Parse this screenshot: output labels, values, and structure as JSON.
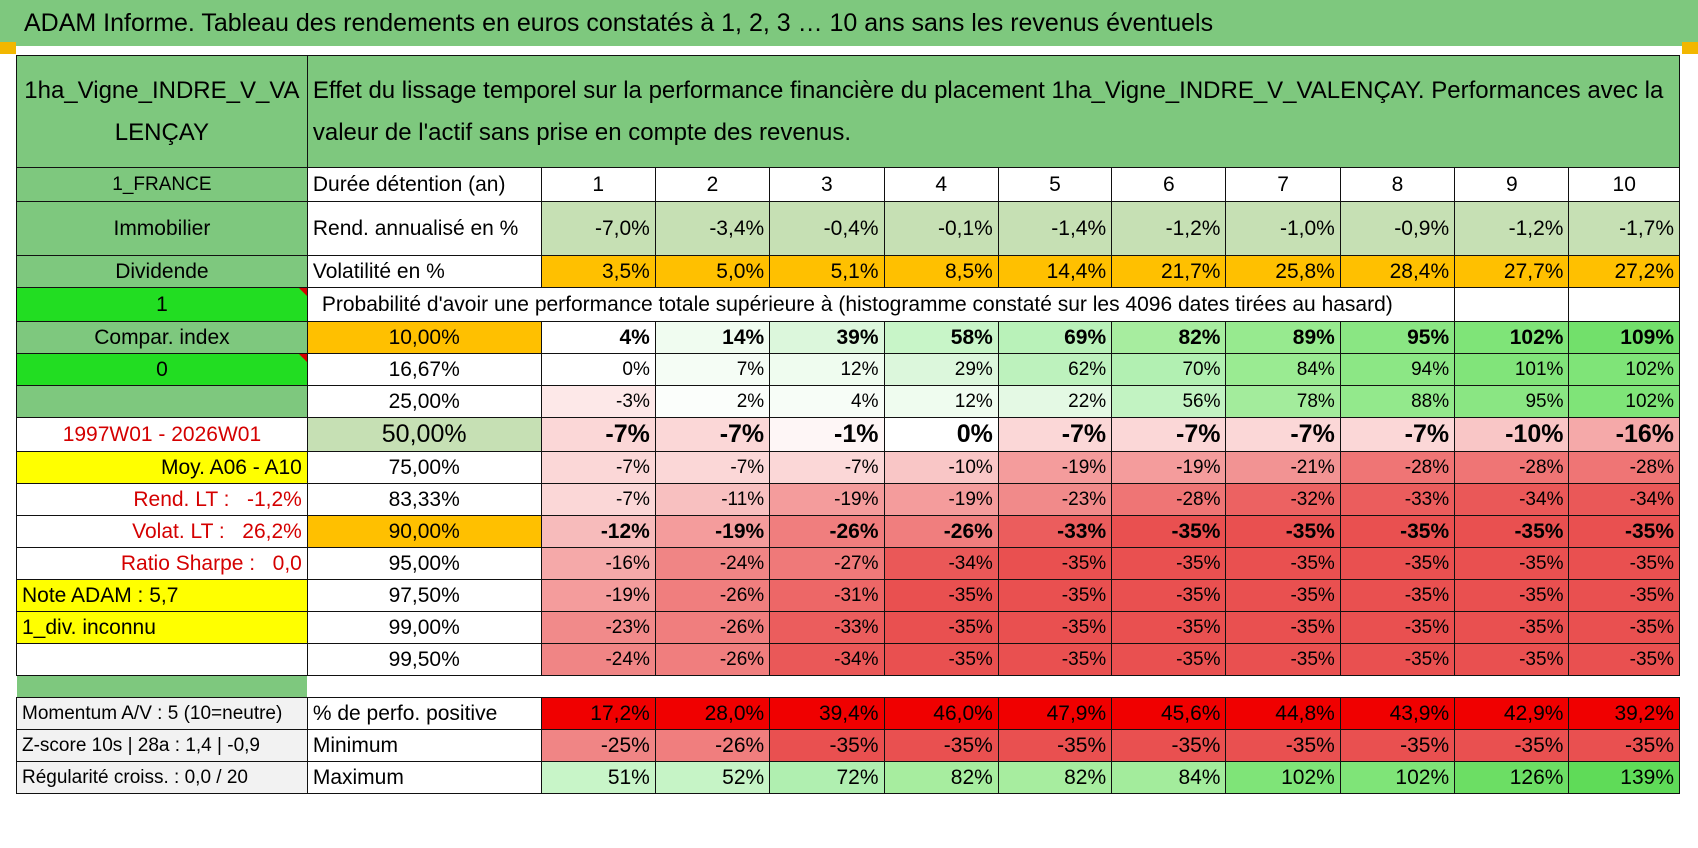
{
  "title": "ADAM Informe. Tableau des rendements en euros constatés à 1, 2, 3 … 10 ans sans les revenus éventuels",
  "asset_name": "1ha_Vigne_INDRE_V_VALENÇAY",
  "description": "Effet du lissage temporel sur la performance financière du placement 1ha_Vigne_INDRE_V_VALENÇAY. Performances avec la valeur de l'actif sans prise en compte des revenus.",
  "left": {
    "country": "1_FRANCE",
    "category": "Immobilier",
    "income_type": "Dividende",
    "flag1": "1",
    "compar_label": "Compar. index",
    "flag2": "0",
    "period": "1997W01 - 2026W01",
    "avg_label": "Moy. A06 - A10",
    "rend_lt_label": "Rend. LT :",
    "rend_lt_value": "-1,2%",
    "volat_lt_label": "Volat. LT :",
    "volat_lt_value": "26,2%",
    "sharpe_label": "Ratio Sharpe :",
    "sharpe_value": "0,0",
    "note": "Note ADAM : 5,7",
    "div": "1_div. inconnu",
    "momentum": "Momentum A/V : 5 (10=neutre)",
    "zscore": "Z-score 10s | 28a : 1,4 | -0,9",
    "regularite": "Régularité croiss. : 0,0 / 20"
  },
  "header": {
    "duration_label": "Durée détention (an)",
    "years": [
      "1",
      "2",
      "3",
      "4",
      "5",
      "6",
      "7",
      "8",
      "9",
      "10"
    ]
  },
  "rend": {
    "label": "Rend. annualisé en %",
    "values": [
      "-7,0%",
      "-3,4%",
      "-0,4%",
      "-0,1%",
      "-1,4%",
      "-1,2%",
      "-1,0%",
      "-0,9%",
      "-1,2%",
      "-1,7%"
    ]
  },
  "vol": {
    "label": "Volatilité en %",
    "values": [
      "3,5%",
      "5,0%",
      "5,1%",
      "8,5%",
      "14,4%",
      "21,7%",
      "25,8%",
      "28,4%",
      "27,7%",
      "27,2%"
    ]
  },
  "prob_title": "Probabilité d'avoir une performance totale supérieure à (histogramme constaté sur les 4096 dates tirées au hasard)",
  "quantiles": [
    {
      "label": "10,00%",
      "values": [
        "4%",
        "14%",
        "39%",
        "58%",
        "69%",
        "82%",
        "89%",
        "95%",
        "102%",
        "109%"
      ],
      "colors": [
        "#ffffff",
        "#f0fcf0",
        "#dcf7dc",
        "#c8f5c8",
        "#b9f2b9",
        "#a7ed9f",
        "#97ea8f",
        "#8ae683",
        "#7fe478",
        "#72e06b"
      ]
    },
    {
      "label": "16,67%",
      "values": [
        "0%",
        "7%",
        "12%",
        "29%",
        "62%",
        "70%",
        "84%",
        "94%",
        "101%",
        "102%"
      ],
      "colors": [
        "#ffffff",
        "#f5fdf5",
        "#effcef",
        "#dcf7dc",
        "#bdf2bd",
        "#b2f0b2",
        "#9aeb92",
        "#8ce785",
        "#81e47a",
        "#7fe478"
      ]
    },
    {
      "label": "25,00%",
      "values": [
        "-3%",
        "2%",
        "4%",
        "12%",
        "22%",
        "56%",
        "78%",
        "88%",
        "95%",
        "102%"
      ],
      "colors": [
        "#fde8e8",
        "#fbfefb",
        "#f7fdf7",
        "#effcef",
        "#e4f9e4",
        "#c2f3c2",
        "#a3ec9c",
        "#93e98c",
        "#8ae683",
        "#7fe478"
      ]
    },
    {
      "label": "50,00%",
      "values": [
        "-7%",
        "-7%",
        "-1%",
        "0%",
        "-7%",
        "-7%",
        "-7%",
        "-7%",
        "-10%",
        "-16%"
      ],
      "colors": [
        "#fbd7d7",
        "#fbd7d7",
        "#fef6f6",
        "#ffffff",
        "#fbd7d7",
        "#fbd7d7",
        "#fbd7d7",
        "#fbd7d7",
        "#f9c6c6",
        "#f5a9a9"
      ]
    },
    {
      "label": "75,00%",
      "values": [
        "-7%",
        "-7%",
        "-7%",
        "-10%",
        "-19%",
        "-19%",
        "-21%",
        "-28%",
        "-28%",
        "-28%"
      ],
      "colors": [
        "#fbd7d7",
        "#fbd7d7",
        "#fbd7d7",
        "#f9c6c6",
        "#f49c9c",
        "#f49c9c",
        "#f29393",
        "#ef7575",
        "#ef7575",
        "#ef7575"
      ]
    },
    {
      "label": "83,33%",
      "values": [
        "-7%",
        "-11%",
        "-19%",
        "-19%",
        "-23%",
        "-28%",
        "-32%",
        "-33%",
        "-34%",
        "-34%"
      ],
      "colors": [
        "#fbd7d7",
        "#f8c0c0",
        "#f49c9c",
        "#f49c9c",
        "#f18a8a",
        "#ef7575",
        "#ec6262",
        "#eb5d5d",
        "#ea5858",
        "#ea5858"
      ]
    },
    {
      "label": "90,00%",
      "values": [
        "-12%",
        "-19%",
        "-26%",
        "-26%",
        "-33%",
        "-35%",
        "-35%",
        "-35%",
        "-35%",
        "-35%"
      ],
      "colors": [
        "#f7bbbb",
        "#f49c9c",
        "#f07e7e",
        "#f07e7e",
        "#eb5d5d",
        "#e95050",
        "#e95050",
        "#e95050",
        "#e95050",
        "#e95050"
      ]
    },
    {
      "label": "95,00%",
      "values": [
        "-16%",
        "-24%",
        "-27%",
        "-34%",
        "-35%",
        "-35%",
        "-35%",
        "-35%",
        "-35%",
        "-35%"
      ],
      "colors": [
        "#f5a9a9",
        "#f08585",
        "#ef7979",
        "#ea5858",
        "#e95050",
        "#e95050",
        "#e95050",
        "#e95050",
        "#e95050",
        "#e95050"
      ]
    },
    {
      "label": "97,50%",
      "values": [
        "-19%",
        "-26%",
        "-31%",
        "-35%",
        "-35%",
        "-35%",
        "-35%",
        "-35%",
        "-35%",
        "-35%"
      ],
      "colors": [
        "#f49c9c",
        "#f07e7e",
        "#ed6767",
        "#e95050",
        "#e95050",
        "#e95050",
        "#e95050",
        "#e95050",
        "#e95050",
        "#e95050"
      ]
    },
    {
      "label": "99,00%",
      "values": [
        "-23%",
        "-26%",
        "-33%",
        "-35%",
        "-35%",
        "-35%",
        "-35%",
        "-35%",
        "-35%",
        "-35%"
      ],
      "colors": [
        "#f18a8a",
        "#f07e7e",
        "#eb5d5d",
        "#e95050",
        "#e95050",
        "#e95050",
        "#e95050",
        "#e95050",
        "#e95050",
        "#e95050"
      ]
    },
    {
      "label": "99,50%",
      "values": [
        "-24%",
        "-26%",
        "-34%",
        "-35%",
        "-35%",
        "-35%",
        "-35%",
        "-35%",
        "-35%",
        "-35%"
      ],
      "colors": [
        "#f08585",
        "#f07e7e",
        "#ea5858",
        "#e95050",
        "#e95050",
        "#e95050",
        "#e95050",
        "#e95050",
        "#e95050",
        "#e95050"
      ]
    }
  ],
  "bottom": {
    "pos": {
      "label": "% de perfo. positive",
      "values": [
        "17,2%",
        "28,0%",
        "39,4%",
        "46,0%",
        "47,9%",
        "45,6%",
        "44,8%",
        "43,9%",
        "42,9%",
        "39,2%"
      ]
    },
    "min": {
      "label": "Minimum",
      "values": [
        "-25%",
        "-26%",
        "-35%",
        "-35%",
        "-35%",
        "-35%",
        "-35%",
        "-35%",
        "-35%",
        "-35%"
      ],
      "colors": [
        "#f08585",
        "#f07e7e",
        "#e95050",
        "#e95050",
        "#e95050",
        "#e95050",
        "#e95050",
        "#e95050",
        "#e95050",
        "#e95050"
      ]
    },
    "max": {
      "label": "Maximum",
      "values": [
        "51%",
        "52%",
        "72%",
        "82%",
        "82%",
        "84%",
        "102%",
        "102%",
        "126%",
        "139%"
      ],
      "colors": [
        "#c8f5c8",
        "#c6f4c6",
        "#b0efb0",
        "#a7ed9f",
        "#a7ed9f",
        "#a3ec9c",
        "#7fe478",
        "#7fe478",
        "#6cde64",
        "#5fdb58"
      ]
    }
  },
  "colors": {
    "title_green": "#7ec87e",
    "rend_green": "#c6e0b4",
    "vol_orange": "#ffc000",
    "pos_red": "#f00000",
    "label_red": "#d40000",
    "yellow": "#ffff00",
    "bright_green": "#22dd22"
  }
}
